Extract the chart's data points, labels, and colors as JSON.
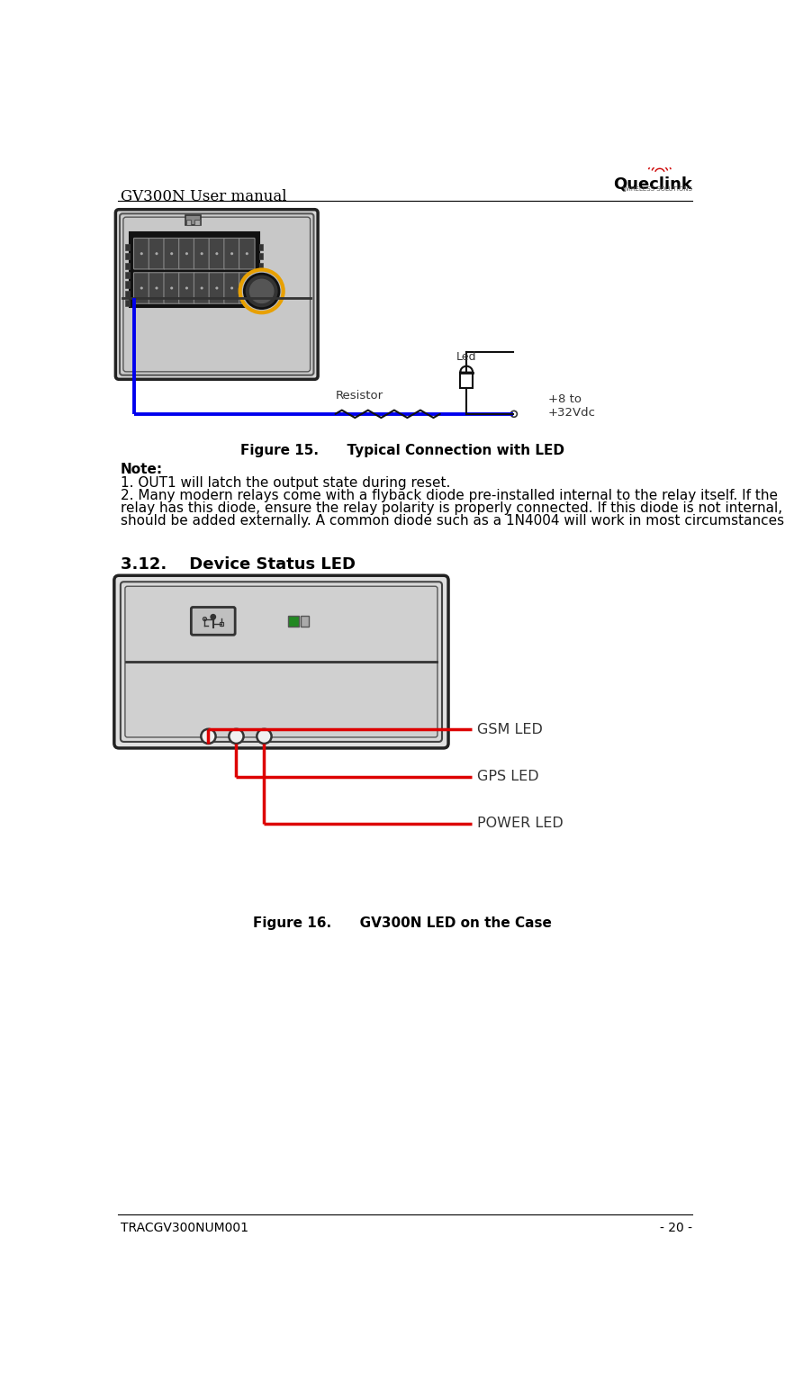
{
  "page_title_left": "GV300N User manual",
  "page_number": "- 20 -",
  "footer_left": "TRACGV300NUM001",
  "figure15_caption": "Figure 15.      Typical Connection with LED",
  "note_title": "Note:",
  "note1": "1. OUT1 will latch the output state during reset.",
  "note2_line1": "2. Many modern relays come with a flyback diode pre-installed internal to the relay itself. If the",
  "note2_line2": "relay has this diode, ensure the relay polarity is properly connected. If this diode is not internal, it",
  "note2_line3": "should be added externally. A common diode such as a 1N4004 will work in most circumstances.",
  "section_title": "3.12.    Device Status LED",
  "figure16_caption": "Figure 16.      GV300N LED on the Case",
  "bg_color": "#ffffff",
  "text_color": "#000000",
  "blue_wire": "#0000ee",
  "red_wire": "#dd0000",
  "orange_ring": "#e8a000",
  "dark_device": "#222222",
  "mid_device": "#aaaaaa",
  "light_device": "#e8e8e8"
}
